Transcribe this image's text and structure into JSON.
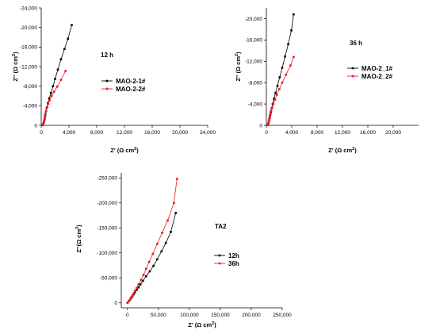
{
  "chart_data": [
    {
      "type": "line",
      "annotation": "12 h",
      "xlabel": "Z' (Ω cm²)",
      "ylabel": "Z'' (Ω cm²)",
      "xlim": [
        0,
        24000
      ],
      "ylim": [
        0,
        -24000
      ],
      "xticks": [
        "0",
        "4,000",
        "8,000",
        "12,000",
        "16,000",
        "20,000",
        "24,000"
      ],
      "yticks": [
        "0",
        "-4,000",
        "-8,000",
        "-12,000",
        "-16,000",
        "-20,000",
        "-24,000"
      ],
      "legend_position": "right-middle",
      "colors": [
        "#000000",
        "#e8202a"
      ],
      "series": [
        {
          "name": "MAO-2-1#",
          "x": [
            200,
            250,
            300,
            350,
            400,
            450,
            500,
            550,
            600,
            700,
            800,
            950,
            1150,
            1400,
            1700,
            2000,
            2400,
            2850,
            3350,
            3850,
            4400
          ],
          "y": [
            -50,
            -150,
            -300,
            -500,
            -750,
            -1050,
            -1400,
            -1800,
            -2250,
            -2900,
            -3600,
            -4500,
            -5500,
            -6600,
            -8000,
            -9500,
            -11400,
            -13500,
            -15600,
            -17700,
            -20500
          ]
        },
        {
          "name": "MAO-2-2#",
          "x": [
            200,
            250,
            300,
            350,
            400,
            450,
            500,
            550,
            600,
            700,
            850,
            1000,
            1200,
            1500,
            1850,
            2300,
            2850,
            3500
          ],
          "y": [
            -50,
            -150,
            -300,
            -500,
            -800,
            -1100,
            -1500,
            -1950,
            -2400,
            -3000,
            -3700,
            -4400,
            -5100,
            -6000,
            -6900,
            -7900,
            -9300,
            -11100
          ]
        }
      ]
    },
    {
      "type": "line",
      "annotation": "36 h",
      "xlabel": "Z' (Ω cm²)",
      "ylabel": "Z'' (Ω cm²)",
      "xlim": [
        0,
        24000
      ],
      "ylim": [
        0,
        -22000
      ],
      "xticks": [
        "0",
        "4,000",
        "8,000",
        "12,000",
        "16,000",
        "20,000"
      ],
      "yticks": [
        "0",
        "-4,000",
        "-8,000",
        "-12,000",
        "-16,000",
        "-20,000"
      ],
      "legend_position": "right-middle",
      "colors": [
        "#000000",
        "#e8202a"
      ],
      "series": [
        {
          "name": "MAO-2_1#",
          "x": [
            200,
            250,
            300,
            350,
            400,
            450,
            500,
            600,
            700,
            850,
            1000,
            1200,
            1450,
            1750,
            2100,
            2500,
            2950,
            3450,
            3950,
            4300
          ],
          "y": [
            -50,
            -150,
            -300,
            -500,
            -750,
            -1050,
            -1400,
            -1900,
            -2500,
            -3200,
            -4000,
            -5000,
            -6100,
            -7400,
            -9000,
            -10800,
            -12900,
            -15200,
            -17800,
            -20800
          ]
        },
        {
          "name": "MAO-2_2#",
          "x": [
            200,
            250,
            300,
            350,
            400,
            450,
            500,
            550,
            650,
            750,
            900,
            1100,
            1350,
            1650,
            2050,
            2500,
            3100,
            3800,
            4300
          ],
          "y": [
            -50,
            -150,
            -300,
            -500,
            -750,
            -1000,
            -1300,
            -1650,
            -2100,
            -2700,
            -3300,
            -4000,
            -4800,
            -5700,
            -6800,
            -8000,
            -9500,
            -11200,
            -12800
          ]
        }
      ]
    },
    {
      "type": "line",
      "annotation": "TA2",
      "xlabel": "Z' (Ω cm²)",
      "ylabel": "Z''(Ω cm²)",
      "xlim": [
        -10000,
        250000
      ],
      "ylim": [
        10000,
        -260000
      ],
      "xticks": [
        "0",
        "50,000",
        "100,000",
        "150,000",
        "200,000",
        "250,000"
      ],
      "yticks": [
        "0",
        "-50,000",
        "-100,000",
        "-150,000",
        "-200,000",
        "-250,000"
      ],
      "legend_position": "right-middle",
      "colors": [
        "#000000",
        "#e8202a"
      ],
      "series": [
        {
          "name": "12h",
          "x": [
            0,
            2000,
            4000,
            6000,
            8000,
            10000,
            12000,
            15000,
            18000,
            21000,
            25000,
            30000,
            36000,
            42000,
            48000,
            55000,
            62000,
            70000,
            78000
          ],
          "y": [
            0,
            -3000,
            -6000,
            -9500,
            -13000,
            -17000,
            -21000,
            -26000,
            -31000,
            -37000,
            -44000,
            -53000,
            -63000,
            -74000,
            -87000,
            -103000,
            -120000,
            -142000,
            -180000
          ]
        },
        {
          "name": "36h",
          "x": [
            0,
            2000,
            4000,
            6000,
            8000,
            10000,
            12000,
            15000,
            18000,
            22000,
            26000,
            30000,
            35000,
            41000,
            48000,
            56000,
            65000,
            75000,
            80000
          ],
          "y": [
            0,
            -3500,
            -7000,
            -11000,
            -15000,
            -19000,
            -24000,
            -30000,
            -37000,
            -46000,
            -56000,
            -68000,
            -82000,
            -98000,
            -118000,
            -140000,
            -165000,
            -200000,
            -248000
          ]
        }
      ]
    }
  ]
}
